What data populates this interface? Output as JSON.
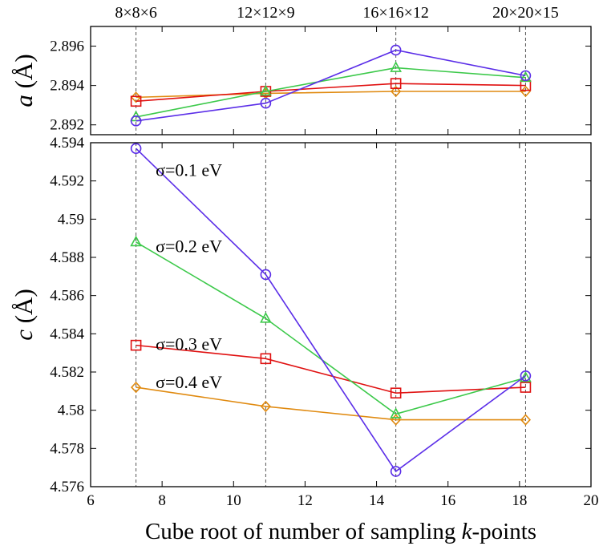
{
  "chart_data": [
    {
      "type": "line",
      "panel": "top",
      "ylabel_italic": "a",
      "ylabel_unit": "(Å)",
      "xlim": [
        6,
        20
      ],
      "ylim": [
        2.8915,
        2.897
      ],
      "yticks": [
        "2.892",
        "2.894",
        "2.896"
      ],
      "ytick_values": [
        2.892,
        2.894,
        2.896
      ],
      "top_tick_labels": [
        "8×8×6",
        "12×12×9",
        "16×16×12",
        "20×20×15"
      ],
      "x": [
        7.27,
        10.9,
        14.54,
        18.17
      ],
      "series": [
        {
          "name": "σ=0.1 eV",
          "marker": "circle",
          "color": "#5b2ee8",
          "values": [
            2.8922,
            2.8931,
            2.8958,
            2.8945
          ]
        },
        {
          "name": "σ=0.2 eV",
          "marker": "triangle",
          "color": "#3cc94a",
          "values": [
            2.8924,
            2.8937,
            2.8949,
            2.8944
          ]
        },
        {
          "name": "σ=0.3 eV",
          "marker": "square",
          "color": "#e01010",
          "values": [
            2.8932,
            2.8937,
            2.8941,
            2.894
          ]
        },
        {
          "name": "σ=0.4 eV",
          "marker": "diamond",
          "color": "#e08a10",
          "values": [
            2.8934,
            2.8936,
            2.8937,
            2.8937
          ]
        }
      ]
    },
    {
      "type": "line",
      "panel": "bottom",
      "ylabel_italic": "c",
      "ylabel_unit": "(Å)",
      "xlabel_prefix": "Cube root of number of sampling ",
      "xlabel_italic": "k",
      "xlabel_suffix": "-points",
      "xlim": [
        6,
        20
      ],
      "ylim": [
        4.576,
        4.594
      ],
      "xticks": [
        "6",
        "8",
        "10",
        "12",
        "14",
        "16",
        "18",
        "20"
      ],
      "xtick_values": [
        6,
        8,
        10,
        12,
        14,
        16,
        18,
        20
      ],
      "yticks": [
        "4.576",
        "4.578",
        "4.58",
        "4.582",
        "4.584",
        "4.586",
        "4.588",
        "4.59",
        "4.592",
        "4.594"
      ],
      "ytick_values": [
        4.576,
        4.578,
        4.58,
        4.582,
        4.584,
        4.586,
        4.588,
        4.59,
        4.592,
        4.594
      ],
      "x": [
        7.27,
        10.9,
        14.54,
        18.17
      ],
      "annotations": [
        {
          "text": "σ=0.1 eV",
          "x": 8.0,
          "y": 4.5926
        },
        {
          "text": "σ=0.2 eV",
          "x": 8.0,
          "y": 4.5886
        },
        {
          "text": "σ=0.3 eV",
          "x": 8.0,
          "y": 4.5835
        },
        {
          "text": "σ=0.4 eV",
          "x": 8.0,
          "y": 4.5815
        }
      ],
      "series": [
        {
          "name": "σ=0.1 eV",
          "marker": "circle",
          "color": "#5b2ee8",
          "values": [
            4.5937,
            4.5871,
            4.5768,
            4.5818
          ]
        },
        {
          "name": "σ=0.2 eV",
          "marker": "triangle",
          "color": "#3cc94a",
          "values": [
            4.5888,
            4.5848,
            4.5798,
            4.5817
          ]
        },
        {
          "name": "σ=0.3 eV",
          "marker": "square",
          "color": "#e01010",
          "values": [
            4.5834,
            4.5827,
            4.5809,
            4.5812
          ]
        },
        {
          "name": "σ=0.4 eV",
          "marker": "diamond",
          "color": "#e08a10",
          "values": [
            4.5812,
            4.5802,
            4.5795,
            4.5795
          ]
        }
      ]
    }
  ]
}
